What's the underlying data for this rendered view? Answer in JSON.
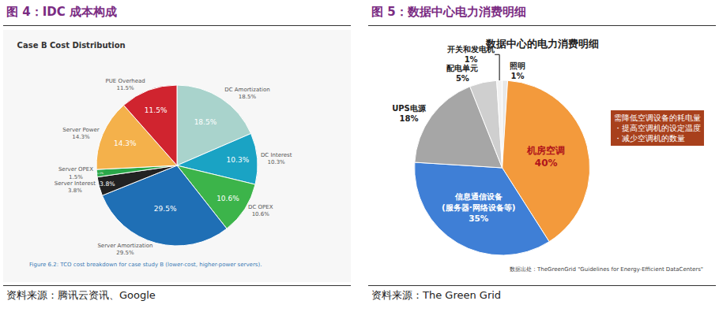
{
  "chart_data": [
    {
      "type": "pie",
      "title": "图 4：IDC 成本构成",
      "subtitle": "Case B Cost Distribution",
      "source": "资料来源：腾讯云资讯、Google",
      "annotations": [
        "Figure 6.2: TCO cost breakdown for case study B (lower-cost, higher-power servers)."
      ],
      "categories": [
        "DC Amortization",
        "DC Interest",
        "DC OPEX",
        "Server Amortization",
        "Server Interest",
        "Server OPEX",
        "Server Power",
        "PUE Overhead"
      ],
      "values": [
        18.5,
        10.3,
        10.6,
        29.5,
        3.8,
        1.5,
        14.3,
        11.5
      ],
      "value_labels": [
        "18.5%",
        "10.3%",
        "10.6%",
        "29.5%",
        "3.8%",
        "1.5%",
        "14.3%",
        "11.5%"
      ],
      "colors": [
        "#a9d3cc",
        "#1aa3c4",
        "#3cb44a",
        "#1f6fb5",
        "#222222",
        "#2aa84a",
        "#f4b14b",
        "#d0242f"
      ],
      "data_labels": true
    },
    {
      "type": "pie",
      "title": "图 5：数据中心电力消费明细",
      "subtitle": "数据中心的电力消费明细",
      "source": "资料来源：The Green Grid",
      "annotations": [
        "需降低空调设备的耗电量\n・提高空调机的设定温度\n・减少空调机的数量",
        "数据出处：TheGreenGrid \"Guidelines for Energy-Efficient DataCenters\""
      ],
      "categories": [
        "照明",
        "机房空调",
        "信息通信设备\n(服务器·网络设备等)",
        "UPS电源",
        "配电单元",
        "开关和发电机"
      ],
      "values": [
        1,
        40,
        35,
        18,
        5,
        1
      ],
      "value_labels": [
        "1%",
        "40%",
        "35%",
        "18%",
        "5%",
        "1%"
      ],
      "colors": [
        "#e8e8e8",
        "#f39a3c",
        "#3f7fd6",
        "#a6a6a6",
        "#cfcfcf",
        "#f2f2f2"
      ],
      "data_labels": true
    }
  ]
}
